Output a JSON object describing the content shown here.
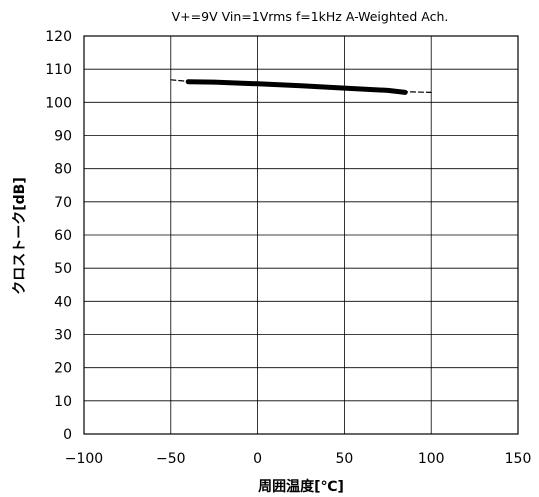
{
  "chart_data": {
    "type": "line",
    "title": "V+=9V Vin=1Vrms f=1kHz A-Weighted Ach.",
    "xlabel": "周囲温度[℃]",
    "ylabel": "クロストーク[dB]",
    "xlim": [
      -100,
      150
    ],
    "ylim": [
      0,
      120
    ],
    "x_ticks": [
      -100,
      -50,
      0,
      50,
      100,
      150
    ],
    "y_ticks": [
      0,
      10,
      20,
      30,
      40,
      50,
      60,
      70,
      80,
      90,
      100,
      110,
      120
    ],
    "x_tick_labels": [
      "−100",
      "−50",
      "0",
      "50",
      "100",
      "150"
    ],
    "y_tick_labels": [
      "0",
      "10",
      "20",
      "30",
      "40",
      "50",
      "60",
      "70",
      "80",
      "90",
      "100",
      "110",
      "120"
    ],
    "grid": true,
    "legend": "none",
    "series": [
      {
        "style": "thick-solid",
        "color": "#000000",
        "x": [
          -40,
          -25,
          0,
          25,
          50,
          75,
          85
        ],
        "y": [
          106.2,
          106.1,
          105.6,
          105,
          104.3,
          103.6,
          103
        ]
      },
      {
        "style": "dashed",
        "color": "#000000",
        "x": [
          -50,
          -40,
          85,
          100
        ],
        "y": [
          106.8,
          106.3,
          103.2,
          103
        ]
      }
    ]
  }
}
